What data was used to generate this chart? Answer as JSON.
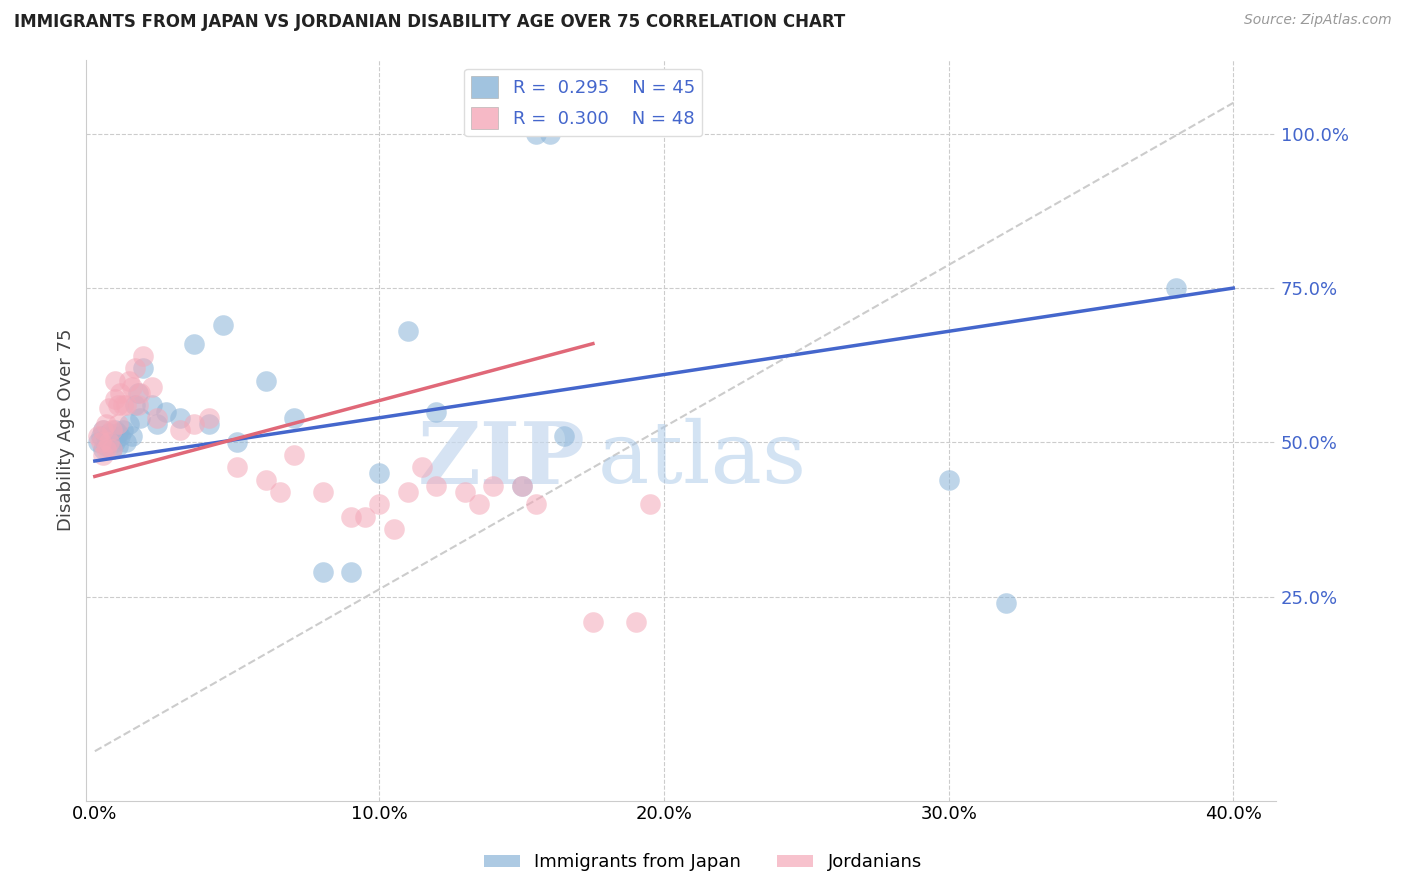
{
  "title": "IMMIGRANTS FROM JAPAN VS JORDANIAN DISABILITY AGE OVER 75 CORRELATION CHART",
  "source": "Source: ZipAtlas.com",
  "ylabel": "Disability Age Over 75",
  "japan_color": "#8ab4d8",
  "jordan_color": "#f4a8b8",
  "japan_R": "0.295",
  "japan_N": "45",
  "jordan_R": "0.300",
  "jordan_N": "48",
  "japan_line_color": "#4466cc",
  "jordan_line_color": "#e06878",
  "diagonal_color": "#cccccc",
  "watermark_zip": "ZIP",
  "watermark_atlas": "atlas",
  "ytick_vals": [
    0.25,
    0.5,
    0.75,
    1.0
  ],
  "ytick_labels": [
    "25.0%",
    "50.0%",
    "75.0%",
    "100.0%"
  ],
  "xtick_vals": [
    0.0,
    0.1,
    0.2,
    0.3,
    0.4
  ],
  "xtick_labels": [
    "0.0%",
    "10.0%",
    "20.0%",
    "30.0%",
    "40.0%"
  ],
  "japan_x": [
    0.001,
    0.002,
    0.003,
    0.003,
    0.004,
    0.004,
    0.005,
    0.005,
    0.006,
    0.006,
    0.007,
    0.007,
    0.008,
    0.008,
    0.009,
    0.01,
    0.011,
    0.012,
    0.013,
    0.014,
    0.015,
    0.016,
    0.017,
    0.02,
    0.022,
    0.025,
    0.03,
    0.035,
    0.04,
    0.045,
    0.05,
    0.06,
    0.07,
    0.08,
    0.09,
    0.1,
    0.11,
    0.12,
    0.15,
    0.155,
    0.16,
    0.165,
    0.3,
    0.32,
    0.38
  ],
  "japan_y": [
    0.5,
    0.51,
    0.52,
    0.49,
    0.505,
    0.495,
    0.515,
    0.5,
    0.51,
    0.49,
    0.52,
    0.5,
    0.515,
    0.495,
    0.51,
    0.52,
    0.5,
    0.53,
    0.51,
    0.56,
    0.58,
    0.54,
    0.62,
    0.56,
    0.53,
    0.55,
    0.54,
    0.66,
    0.53,
    0.69,
    0.5,
    0.6,
    0.54,
    0.29,
    0.29,
    0.45,
    0.68,
    0.55,
    0.43,
    1.0,
    1.0,
    0.51,
    0.44,
    0.24,
    0.75
  ],
  "jordan_x": [
    0.001,
    0.002,
    0.003,
    0.003,
    0.004,
    0.004,
    0.005,
    0.005,
    0.006,
    0.006,
    0.007,
    0.007,
    0.008,
    0.008,
    0.009,
    0.01,
    0.011,
    0.012,
    0.013,
    0.014,
    0.015,
    0.016,
    0.017,
    0.02,
    0.022,
    0.03,
    0.035,
    0.04,
    0.05,
    0.06,
    0.065,
    0.07,
    0.08,
    0.09,
    0.095,
    0.1,
    0.105,
    0.11,
    0.115,
    0.12,
    0.13,
    0.135,
    0.14,
    0.15,
    0.155,
    0.175,
    0.19,
    0.195
  ],
  "jordan_y": [
    0.51,
    0.5,
    0.52,
    0.48,
    0.53,
    0.49,
    0.555,
    0.5,
    0.52,
    0.49,
    0.6,
    0.57,
    0.56,
    0.53,
    0.58,
    0.56,
    0.56,
    0.6,
    0.59,
    0.62,
    0.56,
    0.58,
    0.64,
    0.59,
    0.54,
    0.52,
    0.53,
    0.54,
    0.46,
    0.44,
    0.42,
    0.48,
    0.42,
    0.38,
    0.38,
    0.4,
    0.36,
    0.42,
    0.46,
    0.43,
    0.42,
    0.4,
    0.43,
    0.43,
    0.4,
    0.21,
    0.21,
    0.4
  ],
  "japan_line_x0": 0.0,
  "japan_line_y0": 0.47,
  "japan_line_x1": 0.4,
  "japan_line_y1": 0.75,
  "jordan_line_x0": 0.0,
  "jordan_line_y0": 0.445,
  "jordan_line_x1": 0.175,
  "jordan_line_y1": 0.66
}
